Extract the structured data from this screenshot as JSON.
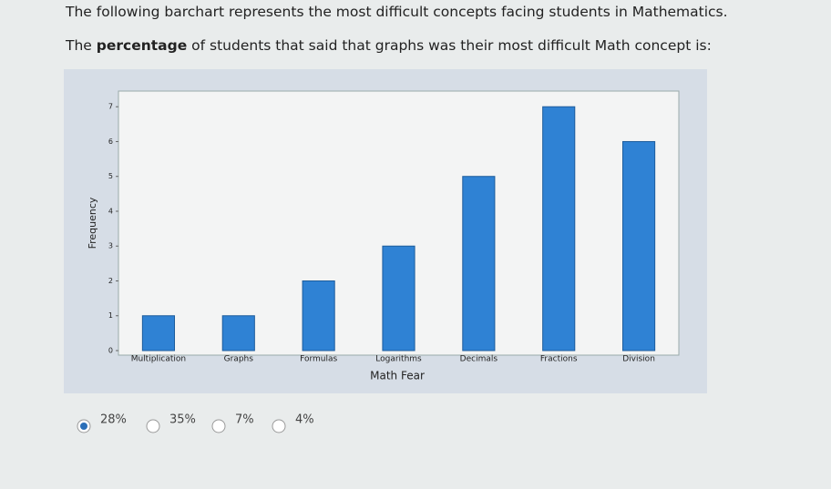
{
  "question": {
    "line1": "The following barchart represents the most difficult concepts facing students in Mathematics.",
    "line2_parts": [
      "The ",
      "percentage",
      " of students that said that graphs was their most difficult Math concept is:"
    ]
  },
  "chart_data": {
    "type": "bar",
    "x_label": "Math Fear",
    "y_label": "Frequency",
    "categories": [
      "Multiplication",
      "Graphs",
      "Formulas",
      "Logarithms",
      "Decimals",
      "Fractions",
      "Division"
    ],
    "values": [
      1,
      1,
      2,
      3,
      5,
      7,
      6
    ],
    "color": "#2f82d4",
    "ylim": [
      0,
      7.45
    ],
    "yticks": [
      0,
      1,
      2,
      3,
      4,
      5,
      6,
      7
    ]
  },
  "options": [
    {
      "label": "28%",
      "selected": true
    },
    {
      "label": "35%",
      "selected": false
    },
    {
      "label": "7%",
      "selected": false
    },
    {
      "label": "4%",
      "selected": false
    }
  ]
}
